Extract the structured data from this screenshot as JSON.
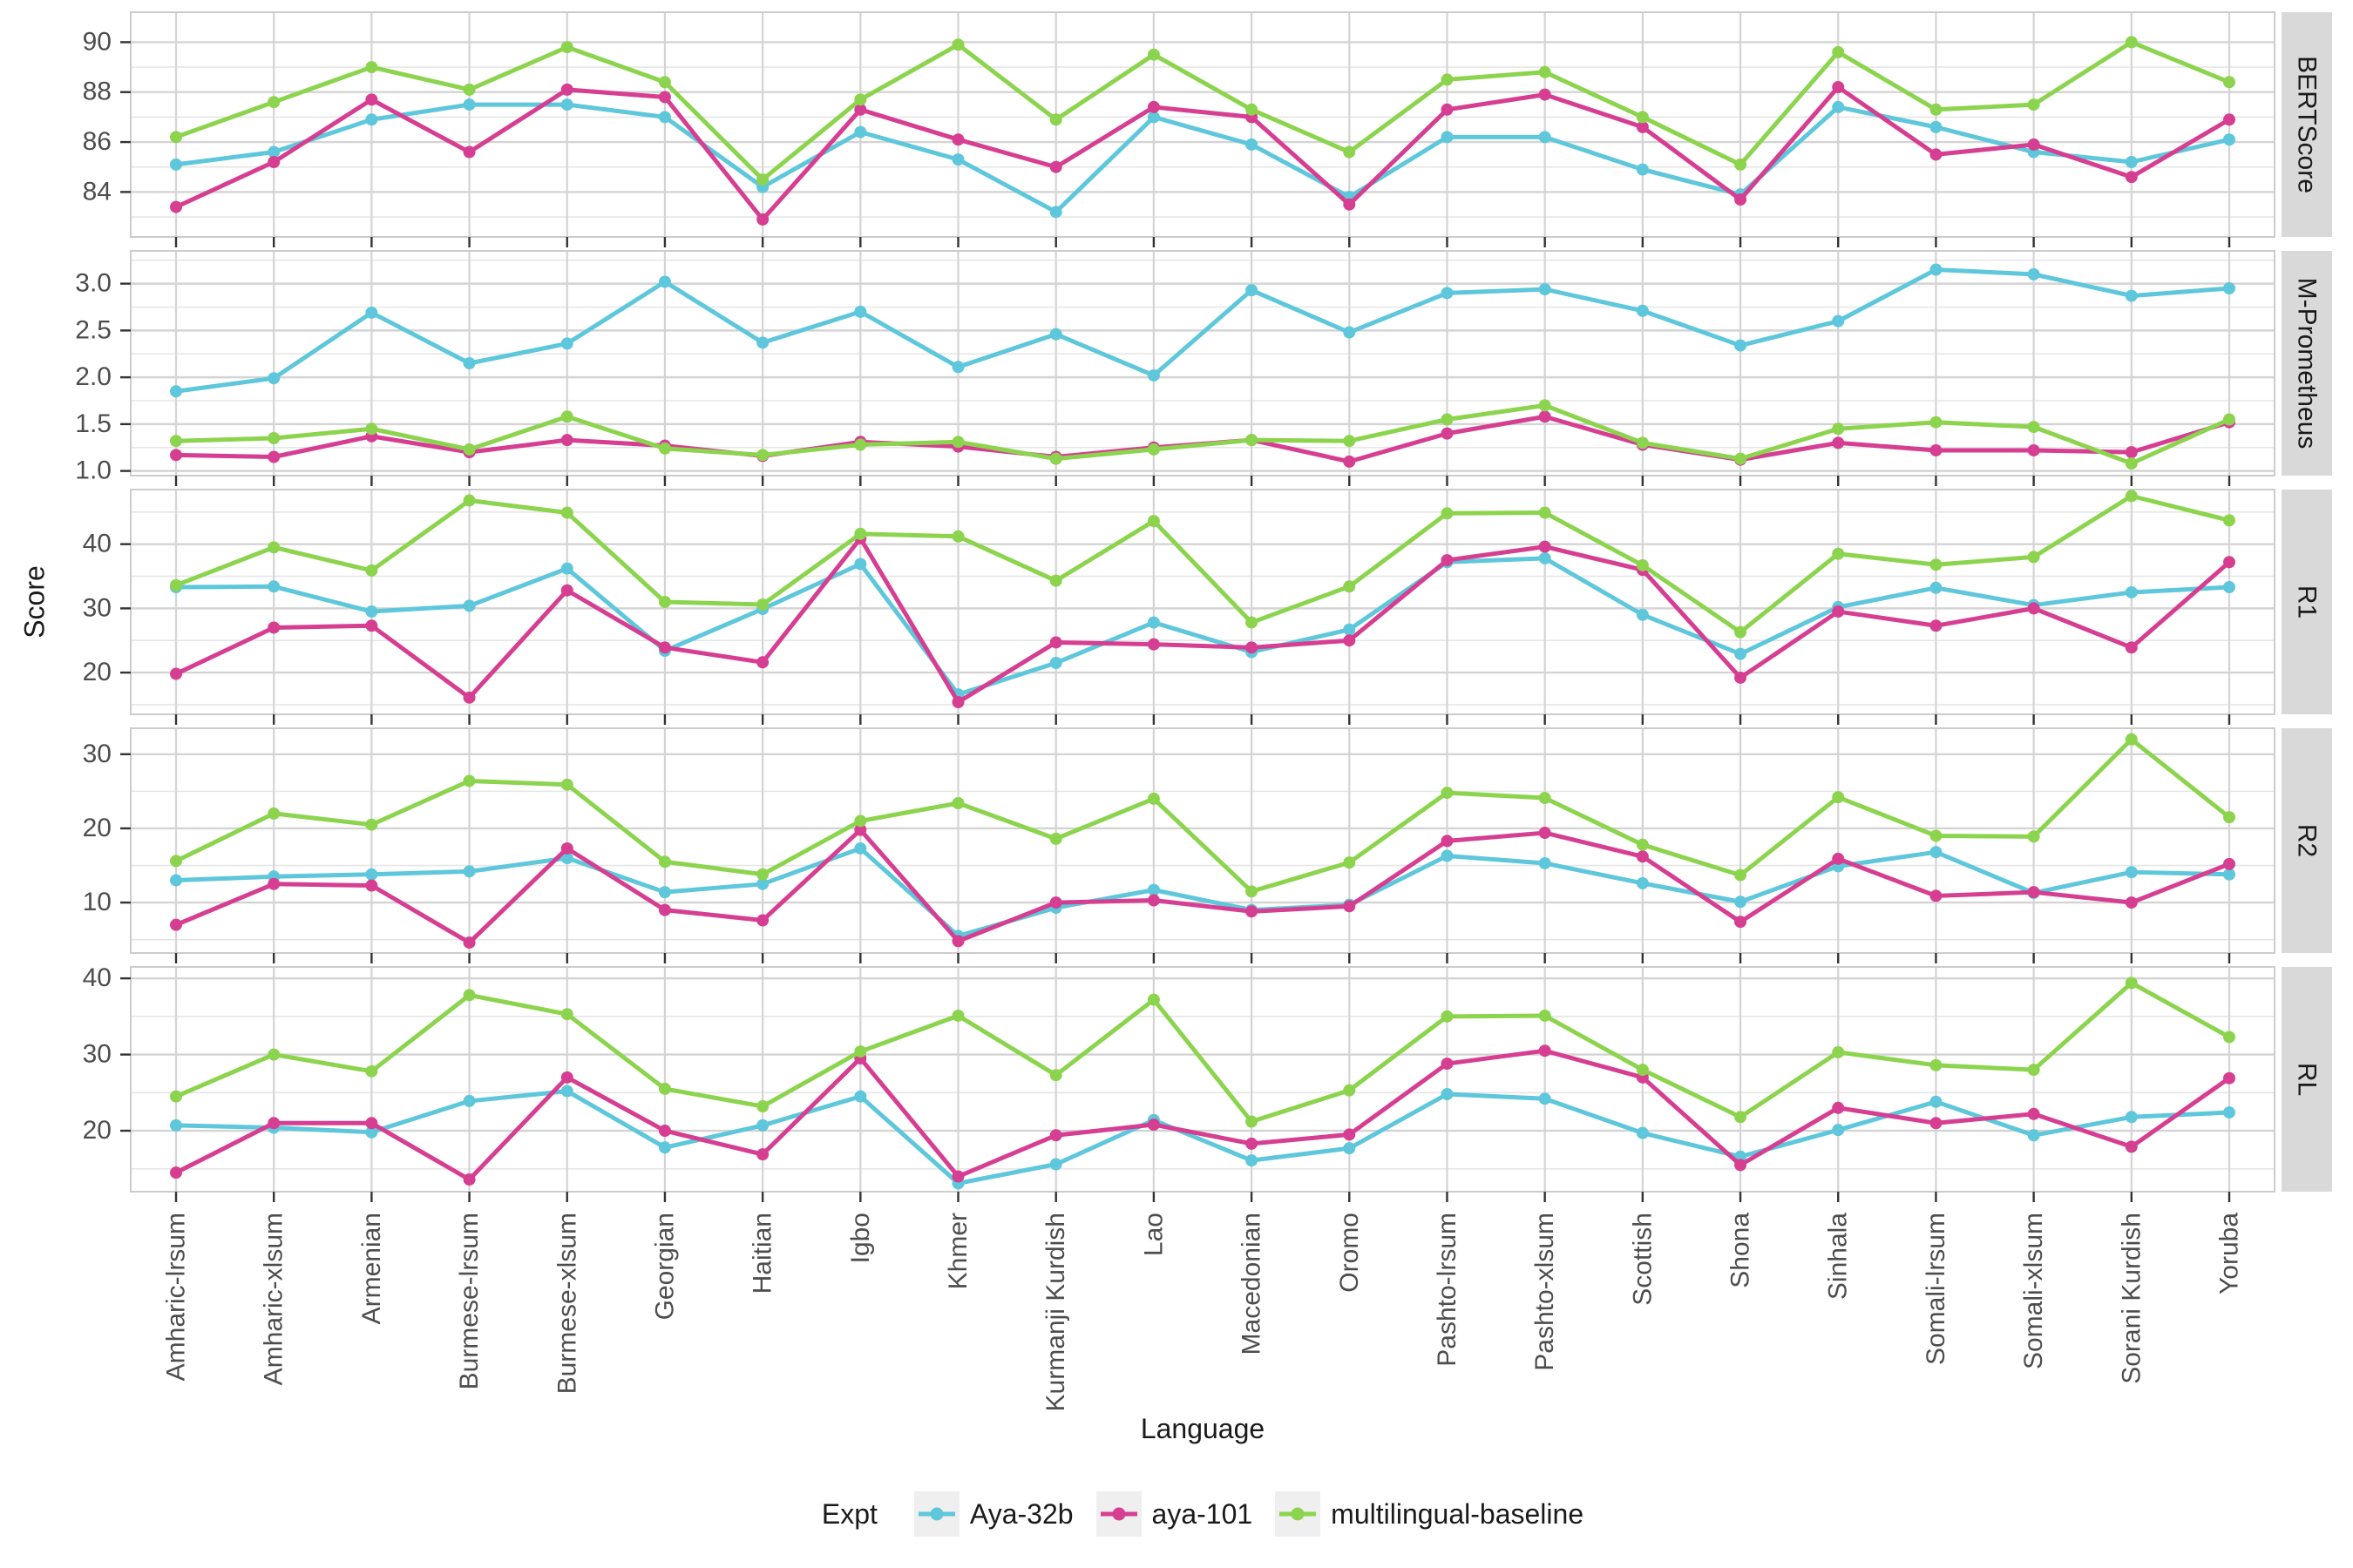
{
  "figure": {
    "y_axis_title": "Score",
    "x_axis_title": "Language"
  },
  "legend": {
    "title": "Expt",
    "items": [
      {
        "label": "Aya-32b",
        "color": "#5EC7DB"
      },
      {
        "label": "aya-101",
        "color": "#D63E92"
      },
      {
        "label": "multilingual-baseline",
        "color": "#8CD44E"
      }
    ]
  },
  "chart_data": {
    "type": "line",
    "grid": true,
    "legend_position": "bottom",
    "xlabel": "Language",
    "ylabel": "Score",
    "categories": [
      "Amharic-lrsum",
      "Amharic-xlsum",
      "Armenian",
      "Burmese-lrsum",
      "Burmese-xlsum",
      "Georgian",
      "Haitian",
      "Igbo",
      "Khmer",
      "Kurmanji Kurdish",
      "Lao",
      "Macedonian",
      "Oromo",
      "Pashto-lrsum",
      "Pashto-xlsum",
      "Scottish",
      "Shona",
      "Sinhala",
      "Somali-lrsum",
      "Somali-xlsum",
      "Sorani Kurdish",
      "Yoruba"
    ],
    "facets": [
      {
        "label": "BERTScore",
        "ylim": [
          82.2,
          91.2
        ],
        "ticks": [
          84,
          86,
          88,
          90
        ],
        "tick_labels": [
          "84",
          "86",
          "88",
          "90"
        ],
        "minor_ticks": [
          83,
          85,
          87,
          89
        ],
        "series": [
          {
            "name": "Aya-32b",
            "color": "#5EC7DB",
            "values": [
              85.1,
              85.6,
              86.9,
              87.5,
              87.5,
              87.0,
              84.2,
              86.4,
              85.3,
              83.2,
              87.0,
              85.9,
              83.8,
              86.2,
              86.2,
              84.9,
              83.9,
              87.4,
              86.6,
              85.6,
              85.2,
              86.1
            ]
          },
          {
            "name": "aya-101",
            "color": "#D63E92",
            "values": [
              83.4,
              85.2,
              87.7,
              85.6,
              88.1,
              87.8,
              82.9,
              87.3,
              86.1,
              85.0,
              87.4,
              87.0,
              83.5,
              87.3,
              87.9,
              86.6,
              83.7,
              88.2,
              85.5,
              85.9,
              84.6,
              86.9
            ]
          },
          {
            "name": "multilingual-baseline",
            "color": "#8CD44E",
            "values": [
              86.2,
              87.6,
              89.0,
              88.1,
              89.8,
              88.4,
              84.5,
              87.7,
              89.9,
              86.9,
              89.5,
              87.3,
              85.6,
              88.5,
              88.8,
              87.0,
              85.1,
              89.6,
              87.3,
              87.5,
              90.0,
              88.4
            ]
          }
        ]
      },
      {
        "label": "M-Prometheus",
        "ylim": [
          0.95,
          3.35
        ],
        "ticks": [
          1.0,
          1.5,
          2.0,
          2.5,
          3.0
        ],
        "tick_labels": [
          "1.0",
          "1.5",
          "2.0",
          "2.5",
          "3.0"
        ],
        "minor_ticks": [
          1.25,
          1.75,
          2.25,
          2.75,
          3.25
        ],
        "series": [
          {
            "name": "Aya-32b",
            "color": "#5EC7DB",
            "values": [
              1.85,
              1.99,
              2.69,
              2.15,
              2.36,
              3.02,
              2.37,
              2.7,
              2.11,
              2.46,
              2.02,
              2.93,
              2.48,
              2.9,
              2.94,
              2.71,
              2.34,
              2.6,
              3.15,
              3.1,
              2.87,
              2.95
            ]
          },
          {
            "name": "aya-101",
            "color": "#D63E92",
            "values": [
              1.17,
              1.15,
              1.37,
              1.2,
              1.33,
              1.27,
              1.16,
              1.31,
              1.26,
              1.15,
              1.25,
              1.33,
              1.1,
              1.4,
              1.58,
              1.28,
              1.12,
              1.3,
              1.22,
              1.22,
              1.2,
              1.52
            ]
          },
          {
            "name": "multilingual-baseline",
            "color": "#8CD44E",
            "values": [
              1.32,
              1.35,
              1.45,
              1.23,
              1.58,
              1.24,
              1.17,
              1.28,
              1.31,
              1.13,
              1.23,
              1.33,
              1.32,
              1.55,
              1.7,
              1.3,
              1.13,
              1.45,
              1.52,
              1.47,
              1.08,
              1.55
            ]
          }
        ]
      },
      {
        "label": "R1",
        "ylim": [
          13.5,
          48.5
        ],
        "ticks": [
          20,
          30,
          40
        ],
        "tick_labels": [
          "20",
          "30",
          "40"
        ],
        "minor_ticks": [
          15,
          25,
          35,
          45
        ],
        "series": [
          {
            "name": "Aya-32b",
            "color": "#5EC7DB",
            "values": [
              33.3,
              33.4,
              29.5,
              30.4,
              36.2,
              23.4,
              29.9,
              36.9,
              16.6,
              21.5,
              27.8,
              23.2,
              26.7,
              37.2,
              37.8,
              29.0,
              22.9,
              30.2,
              33.2,
              30.5,
              32.5,
              33.3
            ]
          },
          {
            "name": "aya-101",
            "color": "#D63E92",
            "values": [
              19.8,
              27.0,
              27.3,
              16.1,
              32.8,
              23.9,
              21.6,
              40.9,
              15.4,
              24.7,
              24.4,
              23.9,
              25.0,
              37.5,
              39.6,
              36.0,
              19.2,
              29.5,
              27.3,
              30.0,
              23.9,
              37.2
            ]
          },
          {
            "name": "multilingual-baseline",
            "color": "#8CD44E",
            "values": [
              33.6,
              39.5,
              35.9,
              46.8,
              44.9,
              31.0,
              30.6,
              41.6,
              41.2,
              34.3,
              43.6,
              27.8,
              33.4,
              44.8,
              44.9,
              36.7,
              26.3,
              38.5,
              36.8,
              38.0,
              47.5,
              43.7
            ]
          }
        ]
      },
      {
        "label": "R2",
        "ylim": [
          3.2,
          33.5
        ],
        "ticks": [
          10,
          20,
          30
        ],
        "tick_labels": [
          "10",
          "20",
          "30"
        ],
        "minor_ticks": [
          5,
          15,
          25
        ],
        "series": [
          {
            "name": "Aya-32b",
            "color": "#5EC7DB",
            "values": [
              13.0,
              13.5,
              13.8,
              14.2,
              16.0,
              11.4,
              12.5,
              17.3,
              5.5,
              9.3,
              11.7,
              9.0,
              9.7,
              16.3,
              15.3,
              12.6,
              10.1,
              14.9,
              16.8,
              11.3,
              14.1,
              13.8
            ]
          },
          {
            "name": "aya-101",
            "color": "#D63E92",
            "values": [
              7.0,
              12.5,
              12.3,
              4.6,
              17.3,
              9.0,
              7.6,
              19.8,
              4.8,
              10.0,
              10.3,
              8.8,
              9.5,
              18.3,
              19.4,
              16.2,
              7.4,
              15.9,
              10.9,
              11.4,
              10.0,
              15.2
            ]
          },
          {
            "name": "multilingual-baseline",
            "color": "#8CD44E",
            "values": [
              15.6,
              22.0,
              20.5,
              26.4,
              25.9,
              15.5,
              13.8,
              21.0,
              23.4,
              18.6,
              24.0,
              11.5,
              15.4,
              24.8,
              24.1,
              17.8,
              13.7,
              24.2,
              19.0,
              18.9,
              32.0,
              21.5
            ]
          }
        ]
      },
      {
        "label": "RL",
        "ylim": [
          12.0,
          41.5
        ],
        "ticks": [
          20,
          30,
          40
        ],
        "tick_labels": [
          "20",
          "30",
          "40"
        ],
        "minor_ticks": [
          15,
          25,
          35
        ],
        "series": [
          {
            "name": "Aya-32b",
            "color": "#5EC7DB",
            "values": [
              20.7,
              20.4,
              19.8,
              23.9,
              25.2,
              17.8,
              20.7,
              24.5,
              13.1,
              15.6,
              21.4,
              16.1,
              17.7,
              24.8,
              24.2,
              19.7,
              16.6,
              20.1,
              23.8,
              19.4,
              21.8,
              22.4
            ]
          },
          {
            "name": "aya-101",
            "color": "#D63E92",
            "values": [
              14.5,
              21.0,
              21.0,
              13.6,
              27.0,
              20.0,
              16.9,
              29.5,
              14.0,
              19.4,
              20.8,
              18.3,
              19.5,
              28.8,
              30.5,
              27.0,
              15.5,
              23.0,
              21.0,
              22.2,
              17.9,
              26.9
            ]
          },
          {
            "name": "multilingual-baseline",
            "color": "#8CD44E",
            "values": [
              24.5,
              30.0,
              27.8,
              37.8,
              35.3,
              25.5,
              23.2,
              30.4,
              35.1,
              27.3,
              37.2,
              21.2,
              25.3,
              35.0,
              35.1,
              28.0,
              21.8,
              30.3,
              28.6,
              28.0,
              39.4,
              32.3
            ]
          }
        ]
      }
    ],
    "style": {
      "grid_major_color": "#D4D4D4",
      "grid_minor_color": "#E6E6E6",
      "panel_border_color": "#CCCCCC",
      "strip_bg_color": "#D9D9D9",
      "strip_text_color": "#1a1a1a",
      "axis_text_color": "#4D4D4D",
      "tick_mark_color": "#333333"
    }
  }
}
